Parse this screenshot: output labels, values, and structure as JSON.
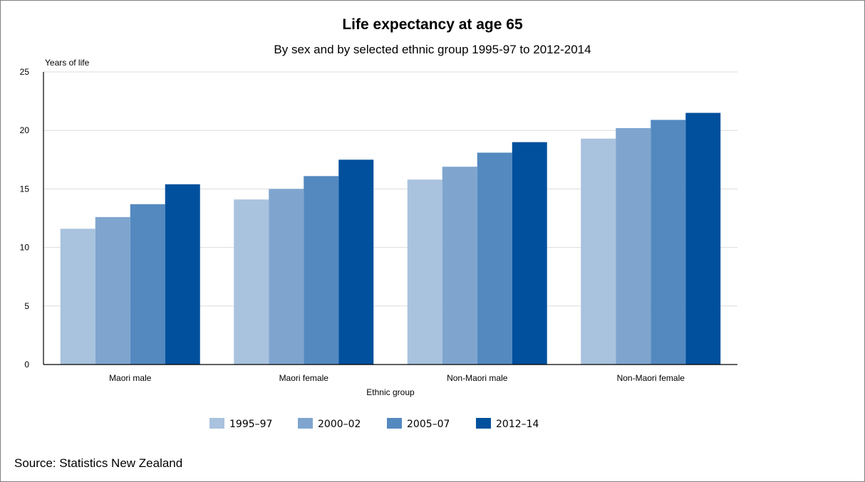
{
  "chart_data": {
    "type": "bar",
    "title": "Life expectancy at age 65",
    "subtitle": "By sex and by selected ethnic group 1995-97 to 2012-2014",
    "ylabel": "Years of life",
    "xlabel": "Ethnic group",
    "ylim": [
      0,
      25
    ],
    "yticks": [
      0,
      5,
      10,
      15,
      20,
      25
    ],
    "grid": true,
    "legend_position": "bottom",
    "categories": [
      "Maori male",
      "Maori female",
      "Non-Maori male",
      "Non-Maori female"
    ],
    "series": [
      {
        "name": "1995–97",
        "color": "#a9c2de",
        "values": [
          11.6,
          14.1,
          15.8,
          19.3
        ]
      },
      {
        "name": "2000–02",
        "color": "#7fa5cf",
        "values": [
          12.6,
          15.0,
          16.9,
          20.2
        ]
      },
      {
        "name": "2005–07",
        "color": "#5489c0",
        "values": [
          13.7,
          16.1,
          18.1,
          20.9
        ]
      },
      {
        "name": "2012–14",
        "color": "#00509d",
        "values": [
          15.4,
          17.5,
          19.0,
          21.5
        ]
      }
    ]
  },
  "footer": {
    "source": "Source: Statistics New Zealand"
  }
}
